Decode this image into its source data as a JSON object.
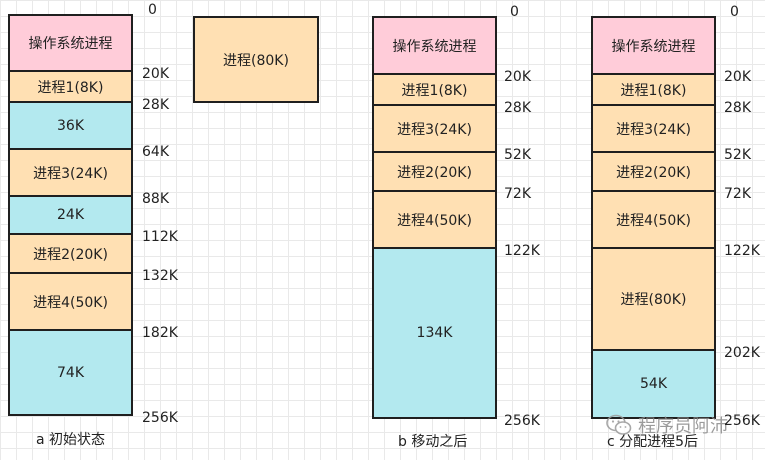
{
  "colors": {
    "os": "#ffccd9",
    "process": "#ffe0b3",
    "free": "#b3e9ef",
    "border": "#1f1f1f"
  },
  "diagrams": [
    {
      "id": "a",
      "caption": "a 初始状态",
      "blocks": [
        {
          "label": "操作系统进程",
          "kind": "os"
        },
        {
          "label": "进程1(8K)",
          "kind": "process"
        },
        {
          "label": "36K",
          "kind": "free"
        },
        {
          "label": "进程3(24K)",
          "kind": "process"
        },
        {
          "label": "24K",
          "kind": "free"
        },
        {
          "label": "进程2(20K)",
          "kind": "process"
        },
        {
          "label": "进程4(50K)",
          "kind": "process"
        },
        {
          "label": "74K",
          "kind": "free"
        }
      ],
      "addresses": [
        "0",
        "20K",
        "28K",
        "64K",
        "88K",
        "112K",
        "132K",
        "182K",
        "256K"
      ]
    },
    {
      "id": "b",
      "caption": "b 移动之后",
      "blocks": [
        {
          "label": "操作系统进程",
          "kind": "os"
        },
        {
          "label": "进程1(8K)",
          "kind": "process"
        },
        {
          "label": "进程3(24K)",
          "kind": "process"
        },
        {
          "label": "进程2(20K)",
          "kind": "process"
        },
        {
          "label": "进程4(50K)",
          "kind": "process"
        },
        {
          "label": "134K",
          "kind": "free"
        }
      ],
      "addresses": [
        "0",
        "20K",
        "28K",
        "52K",
        "72K",
        "122K",
        "256K"
      ]
    },
    {
      "id": "c",
      "caption": "c 分配进程5后",
      "blocks": [
        {
          "label": "操作系统进程",
          "kind": "os"
        },
        {
          "label": "进程1(8K)",
          "kind": "process"
        },
        {
          "label": "进程3(24K)",
          "kind": "process"
        },
        {
          "label": "进程2(20K)",
          "kind": "process"
        },
        {
          "label": "进程4(50K)",
          "kind": "process"
        },
        {
          "label": "进程(80K)",
          "kind": "process"
        },
        {
          "label": "54K",
          "kind": "free"
        }
      ],
      "addresses": [
        "0",
        "20K",
        "28K",
        "52K",
        "72K",
        "122K",
        "202K",
        "256K"
      ]
    }
  ],
  "standalone_process": {
    "label": "进程(80K)",
    "kind": "process"
  },
  "watermark": {
    "text": "程序员阿沛",
    "icon": "wechat-icon"
  }
}
